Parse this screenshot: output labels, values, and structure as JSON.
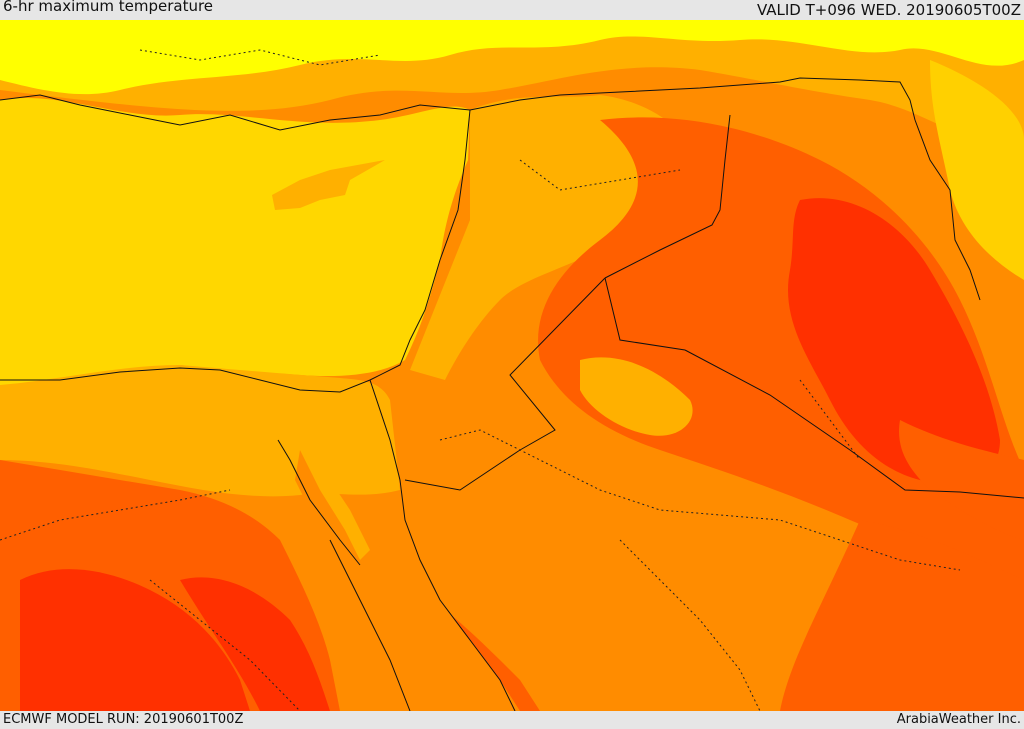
{
  "header": {
    "title": "6-hr maximum temperature",
    "valid": "VALID T+096 WED. 20190605T00Z"
  },
  "footer": {
    "model_run": "ECMWF MODEL RUN: 20190601T00Z",
    "credit": "ArabiaWeather Inc."
  },
  "map": {
    "palette": {
      "sea_band": "#ffd700",
      "yellow": "#ffff00",
      "light_orange": "#ffb000",
      "orange": "#ff8c00",
      "dark_orange": "#ff5f00",
      "red": "#ff3000",
      "deep_red": "#f01a00"
    },
    "border_color": "#111111"
  }
}
